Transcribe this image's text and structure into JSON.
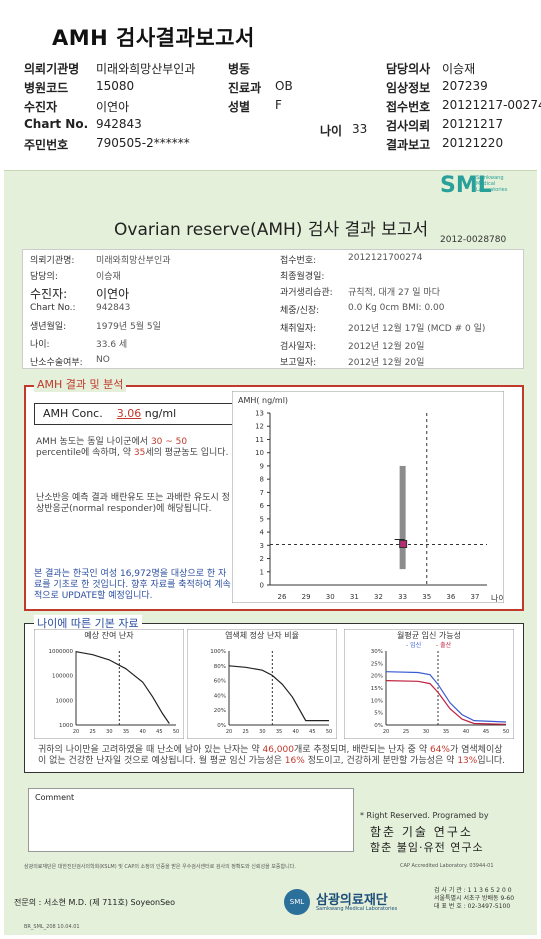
{
  "header": {
    "title": "AMH 검사결과보고서",
    "rows": [
      [
        {
          "l": "의뢰기관명",
          "v": "미래와희망산부인과"
        },
        {
          "l": "병동",
          "v": ""
        },
        {
          "l": "담당의사",
          "v": "이승재"
        }
      ],
      [
        {
          "l": "병원코드",
          "v": "15080"
        },
        {
          "l": "진료과",
          "v": "OB"
        },
        {
          "l": "임상정보",
          "v": "207239"
        }
      ],
      [
        {
          "l": "수진자",
          "v": "이연아"
        },
        {
          "l": "성별",
          "v": "F"
        },
        {
          "l": "접수번호",
          "v": "20121217-00274"
        }
      ],
      [
        {
          "l": "Chart No.",
          "v": "942843"
        },
        {
          "l": "",
          "v": ""
        },
        {
          "l": "검사의뢰",
          "v": "20121217"
        }
      ],
      [
        {
          "l": "주민번호",
          "v": "790505-2******"
        },
        {
          "l": "",
          "v": ""
        },
        {
          "l": "결과보고",
          "v": "20121220"
        }
      ]
    ],
    "age_label": "나이",
    "age_value": "33"
  },
  "report": {
    "logo": "SML",
    "logo_sub": "Samkwang Medical Laboratories",
    "title": "Ovarian reserve(AMH) 검사 결과 보고서",
    "doc_no": "2012-0028780",
    "left_info": [
      {
        "l": "의뢰기관명:",
        "v": "미래와희망산부인과"
      },
      {
        "l": "담당의:",
        "v": "이승재"
      },
      {
        "l": "수진자:",
        "v": "이연아"
      },
      {
        "l": "Chart No.:",
        "v": "942843"
      },
      {
        "l": "생년월일:",
        "v": "1979년 5월 5일"
      },
      {
        "l": "나이:",
        "v": "33.6 세"
      },
      {
        "l": "난소수술여부:",
        "v": "NO"
      }
    ],
    "right_info": [
      {
        "l": "접수번호:",
        "v": "2012121700274"
      },
      {
        "l": "최종월경일:",
        "v": ""
      },
      {
        "l": "과거생리습관:",
        "v": "규칙적, 대개  27 일 마다"
      },
      {
        "l": "체중/신장:",
        "v": "0.0 Kg      0cm   BMI:   0.00"
      },
      {
        "l": "채취일자:",
        "v": "2012년 12월 17일  (MCD #  0 일)"
      },
      {
        "l": "검사일자:",
        "v": "2012년 12월 20일"
      },
      {
        "l": "보고일자:",
        "v": "2012년 12월 20일"
      }
    ],
    "amh_section_title": "AMH 결과 및 분석",
    "amh_label": "AMH Conc.",
    "amh_value": "3.06",
    "amh_unit": "ng/ml",
    "analysis_p1_a": "AMH 농도는 동일 나이군에서",
    "analysis_p1_range": "30 ~  50",
    "analysis_p1_b": "percentile에 속하며, 약",
    "analysis_p1_age": "35",
    "analysis_p1_c": "세의 평균농도 입니다.",
    "analysis_p2": "난소반응 예측 결과 배란유도 또는 과배란 유도시 정상반응군(normal responder)에 해당됩니다.",
    "analysis_p3": "본 결과는 한국인 여성 16,972명을 대상으로 한 자료를 기초로 한 것입니다. 향후 자료를 축적하여 계속적으로 UPDATE할 예정입니다.",
    "age_section_title": "나이에 따른 기본 자료",
    "mini1_title": "예상 잔여 난자",
    "mini2_title": "염색체 정상 난자 비율",
    "mini3_title": "월평균 임신 가능성",
    "mini3_legend_a": "- 임신",
    "mini3_legend_b": "- 출산",
    "summary_a": "귀하의 나이만을 고려하였을 때 난소에 남아 있는 난자는 약",
    "summary_eggs": "46,000",
    "summary_b": "개로 추정되며, 배란되는 난자 중",
    "summary_c": "약",
    "summary_pct1": "64%",
    "summary_d": "가 염색체이상이 없는 건강한 난자일 것으로 예상됩니다. 월 평균 임신 가능성은",
    "summary_pct2": "16%",
    "summary_e": "정도이고, 건강하게 분만할 가능성은 약",
    "summary_pct3": "13%",
    "summary_f": "입니다.",
    "comment_label": "Comment",
    "rights": "* Right Reserved. Programed by",
    "inst1": "함춘 기술 연구소",
    "inst2": "함춘 불임·유전 연구소",
    "footnote": "삼광의료재단은 대한진단검사의학회(KSLM) 및 CAP의 소정의 인증을 받은 우수검사센터로 검사의 정확도와 신뢰성을 보증합니다.",
    "cap": "CAP Accredited Laboratory. 03944-01",
    "sign": "전문의 : 서소현 M.D. (제 711호)  SoyeonSeo",
    "seal": "SML",
    "foundation": "삼광의료재단",
    "foundation_sub": "Samkwang Medical Laboratories",
    "contact": [
      "검 사 기 관 : 1 1 3 6 5 2 0 0",
      "서울특별시 서초구 방배동 9-60",
      "대 표 번 호 : 02-3497-5100"
    ],
    "bottomline": "BR_SML_208    10.04.01"
  },
  "chart_data": [
    {
      "type": "box",
      "ylabel": "AMH( ng/ml)",
      "xlabel": "나이",
      "x_ticks": [
        26,
        29,
        30,
        31,
        32,
        33,
        35,
        36,
        37
      ],
      "ylim": [
        0,
        13
      ],
      "y_ticks": [
        0,
        1,
        2,
        3,
        4,
        5,
        6,
        7,
        8,
        9,
        10,
        11,
        12,
        13
      ],
      "range_bar": {
        "x": 33,
        "low": 1.2,
        "high": 9.0
      },
      "patient_point": {
        "x": 33,
        "y": 3.06
      },
      "vline_x": 35
    },
    {
      "type": "line",
      "title": "예상 잔여 난자",
      "x": [
        20,
        25,
        30,
        35,
        40,
        45,
        50
      ],
      "y_ticks": [
        "1000",
        "10000",
        "100000",
        "1000000"
      ],
      "scale": "log",
      "vline_x": 33
    },
    {
      "type": "line",
      "title": "염색체 정상 난자 비율",
      "x": [
        20,
        25,
        30,
        35,
        40,
        45,
        50
      ],
      "y_ticks": [
        "0%",
        "20%",
        "40%",
        "60%",
        "80%",
        "100%"
      ],
      "vline_x": 33
    },
    {
      "type": "line",
      "title": "월평균 임신 가능성",
      "x": [
        20,
        25,
        30,
        35,
        40,
        45,
        50
      ],
      "y_ticks": [
        "0%",
        "5%",
        "10%",
        "15%",
        "20%",
        "25%",
        "30%"
      ],
      "vline_x": 33
    }
  ]
}
